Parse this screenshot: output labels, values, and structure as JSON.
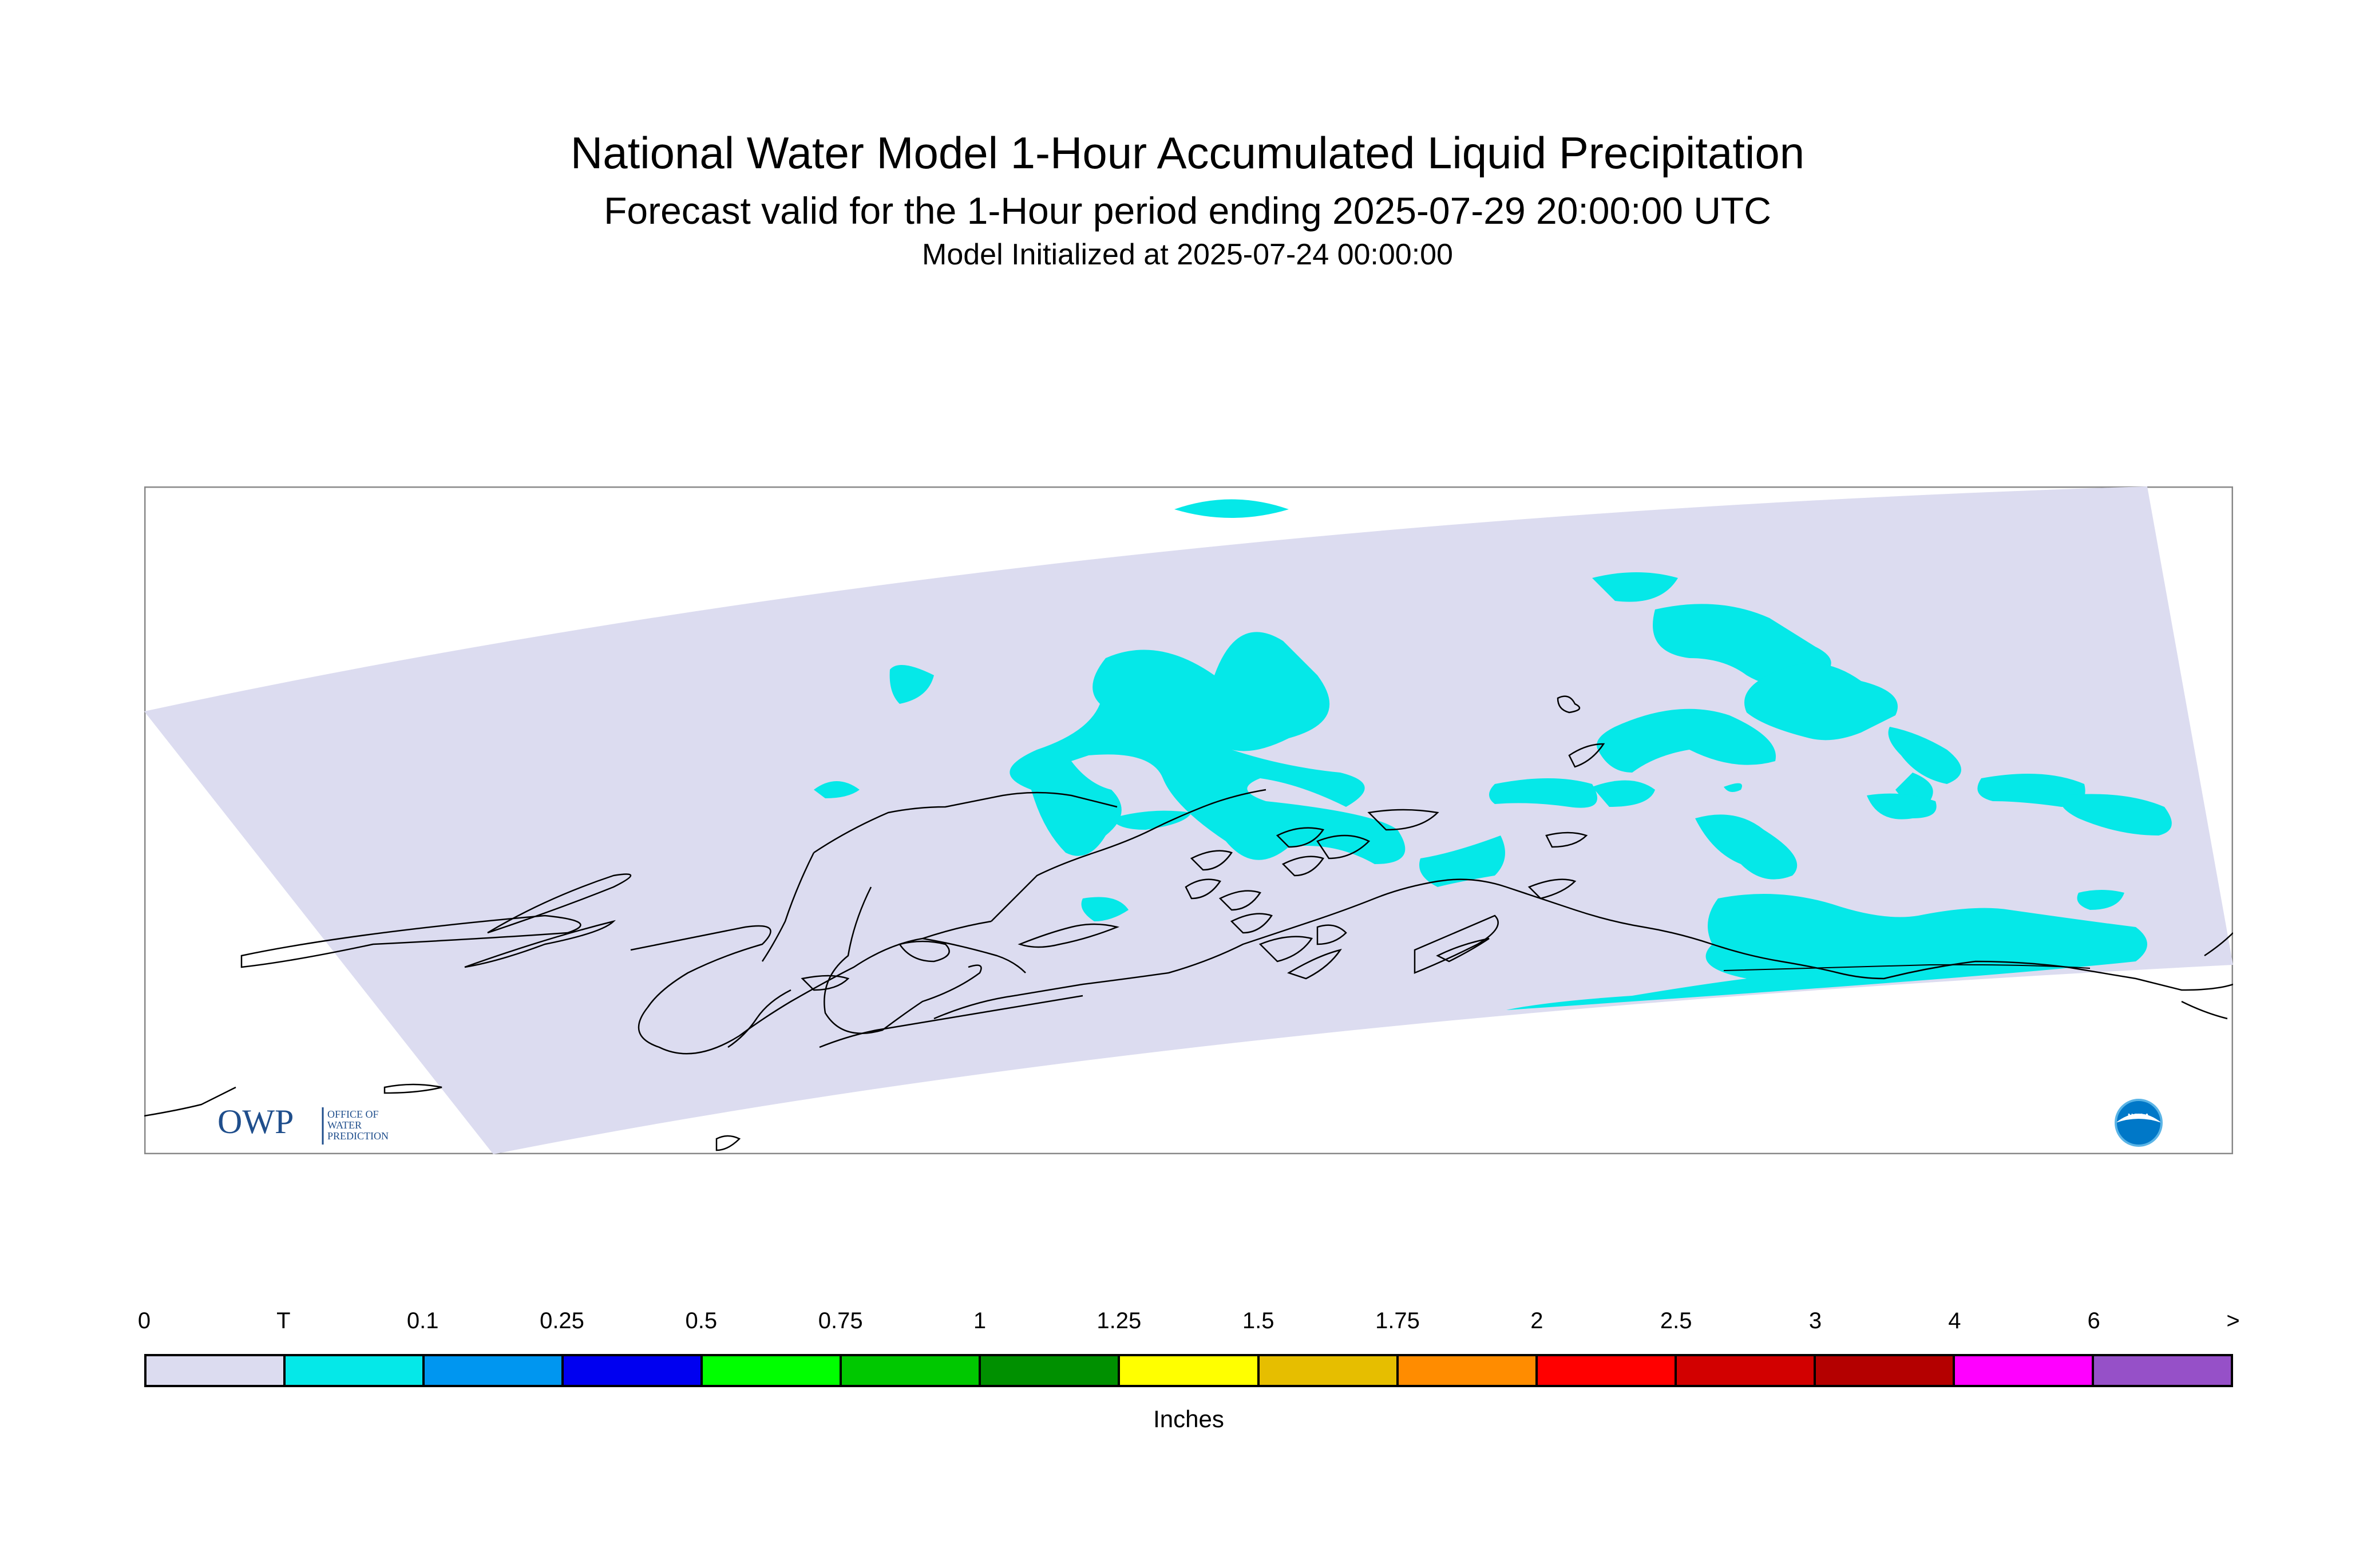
{
  "header": {
    "title": "National Water Model 1-Hour Accumulated Liquid Precipitation",
    "subtitle": "Forecast valid for the 1-Hour period ending 2025-07-29 20:00:00 UTC",
    "init": "Model Initialized at 2025-07-24 00:00:00"
  },
  "map": {
    "region": "Alaska",
    "domain_fill_color": "#dcdcf0",
    "precip_color": "#05e8e8",
    "coastline_color": "#000000",
    "logos": {
      "owp": "OWP",
      "owp_sub": [
        "OFFICE OF",
        "WATER",
        "PREDICTION"
      ],
      "noaa": "NOAA"
    }
  },
  "legend": {
    "units": "Inches",
    "ticks": [
      "0",
      "T",
      "0.1",
      "0.25",
      "0.5",
      "0.75",
      "1",
      "1.25",
      "1.5",
      "1.75",
      "2",
      "2.5",
      "3",
      "4",
      "6",
      ">"
    ],
    "colors": [
      "#dcdcf0",
      "#05e8e8",
      "#0096f0",
      "#0000f0",
      "#00ff00",
      "#00c800",
      "#009000",
      "#ffff00",
      "#e6be00",
      "#ff8c00",
      "#ff0000",
      "#d20000",
      "#b40000",
      "#ff00ff",
      "#9650c8"
    ]
  }
}
